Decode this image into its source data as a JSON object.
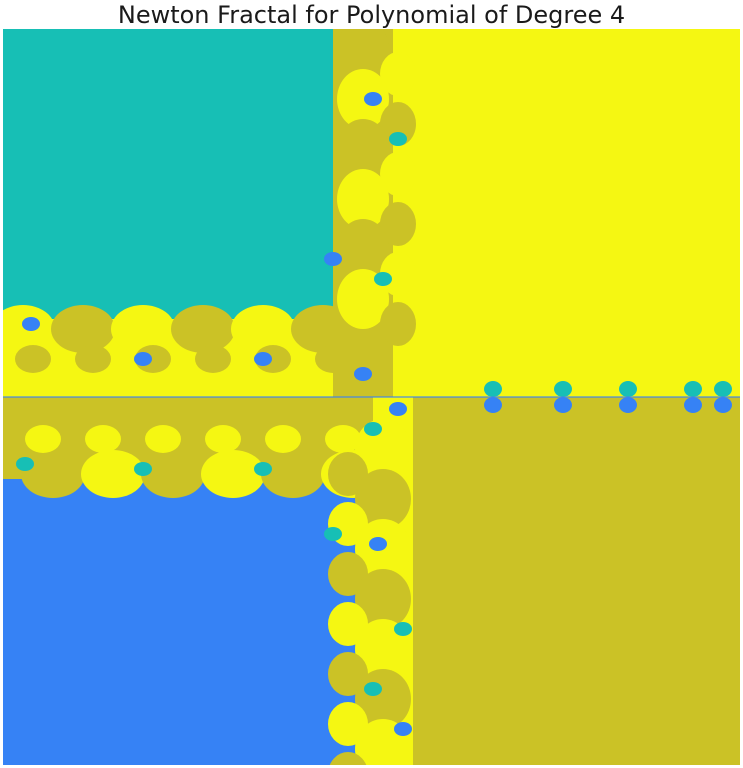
{
  "figure": {
    "title": "Newton Fractal for Polynomial of Degree 4"
  },
  "colors": {
    "root_teal": "#17BFB5",
    "root_yellow": "#F5F712",
    "root_blue": "#3682F5",
    "root_olive": "#CBC226",
    "background": "#ffffff",
    "title_text": "#1a1a1a"
  }
}
